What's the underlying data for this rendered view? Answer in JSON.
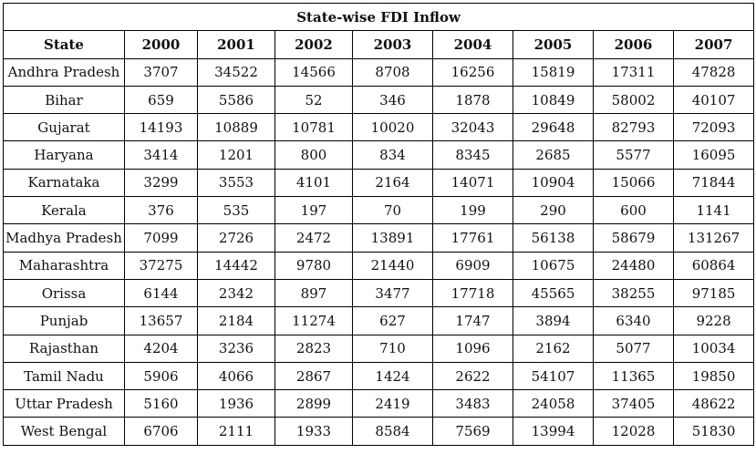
{
  "table": {
    "title": "State-wise FDI Inflow",
    "headers": [
      "State",
      "2000",
      "2001",
      "2002",
      "2003",
      "2004",
      "2005",
      "2006",
      "2007"
    ],
    "rows": [
      [
        "Andhra Pradesh",
        "3707",
        "34522",
        "14566",
        "8708",
        "16256",
        "15819",
        "17311",
        "47828"
      ],
      [
        "Bihar",
        "659",
        "5586",
        "52",
        "346",
        "1878",
        "10849",
        "58002",
        "40107"
      ],
      [
        "Gujarat",
        "14193",
        "10889",
        "10781",
        "10020",
        "32043",
        "29648",
        "82793",
        "72093"
      ],
      [
        "Haryana",
        "3414",
        "1201",
        "800",
        "834",
        "8345",
        "2685",
        "5577",
        "16095"
      ],
      [
        "Karnataka",
        "3299",
        "3553",
        "4101",
        "2164",
        "14071",
        "10904",
        "15066",
        "71844"
      ],
      [
        "Kerala",
        "376",
        "535",
        "197",
        "70",
        "199",
        "290",
        "600",
        "1141"
      ],
      [
        "Madhya Pradesh",
        "7099",
        "2726",
        "2472",
        "13891",
        "17761",
        "56138",
        "58679",
        "131267"
      ],
      [
        "Maharashtra",
        "37275",
        "14442",
        "9780",
        "21440",
        "6909",
        "10675",
        "24480",
        "60864"
      ],
      [
        "Orissa",
        "6144",
        "2342",
        "897",
        "3477",
        "17718",
        "45565",
        "38255",
        "97185"
      ],
      [
        "Punjab",
        "13657",
        "2184",
        "11274",
        "627",
        "1747",
        "3894",
        "6340",
        "9228"
      ],
      [
        "Rajasthan",
        "4204",
        "3236",
        "2823",
        "710",
        "1096",
        "2162",
        "5077",
        "10034"
      ],
      [
        "Tamil Nadu",
        "5906",
        "4066",
        "2867",
        "1424",
        "2622",
        "54107",
        "11365",
        "19850"
      ],
      [
        "Uttar Pradesh",
        "5160",
        "1936",
        "2899",
        "2419",
        "3483",
        "24058",
        "37405",
        "48622"
      ],
      [
        "West Bengal",
        "6706",
        "2111",
        "1933",
        "8584",
        "7569",
        "13994",
        "12028",
        "51830"
      ]
    ]
  }
}
